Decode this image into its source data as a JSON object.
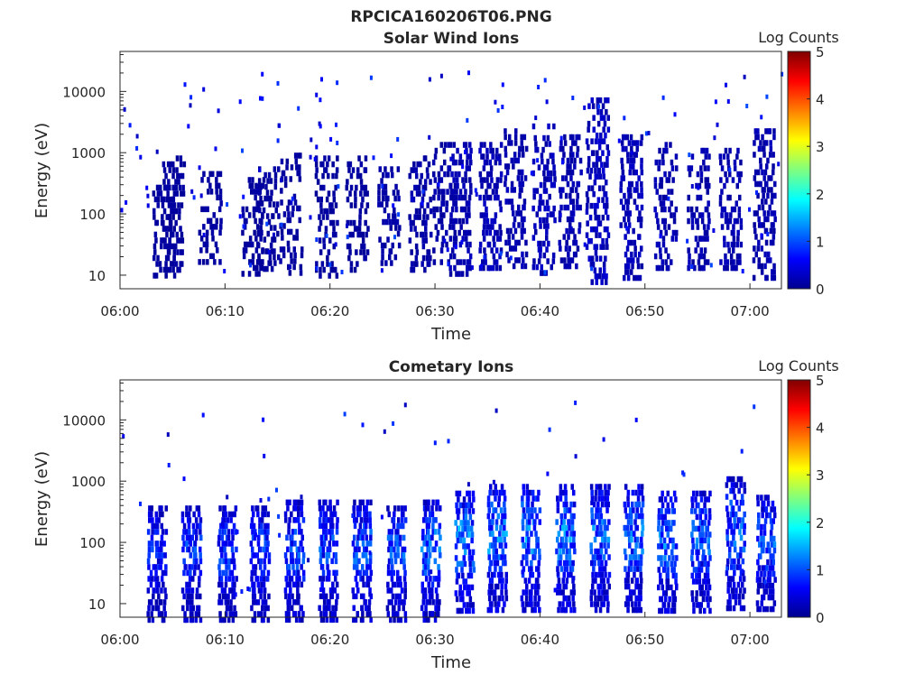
{
  "figure": {
    "title": "RPCICA160206T06.PNG"
  },
  "colorbar": {
    "title": "Log Counts",
    "ticks": [
      "0",
      "1",
      "2",
      "3",
      "4",
      "5"
    ],
    "range": [
      0,
      5
    ],
    "colormap": "jet",
    "colors": [
      "#00008f",
      "#0000ff",
      "#007fff",
      "#00ffff",
      "#7fff7f",
      "#ffff00",
      "#ff7f00",
      "#ff0000",
      "#7f0000"
    ]
  },
  "chart_data": [
    {
      "type": "heatmap",
      "title": "Solar Wind Ions",
      "xlabel": "Time",
      "ylabel": "Energy (eV)",
      "x_ticks": [
        "06:00",
        "06:10",
        "06:20",
        "06:30",
        "06:40",
        "06:50",
        "07:00"
      ],
      "x_range_minutes": [
        0,
        63
      ],
      "y_ticks": [
        "10",
        "100",
        "1000",
        "10000"
      ],
      "y_scale": "log",
      "y_range": [
        6,
        45000
      ],
      "color_scale": "Log Counts",
      "columns": [
        {
          "t": 4.1,
          "e": [
            10,
            300
          ],
          "c": 0.1,
          "s": 0.6
        },
        {
          "t": 5.0,
          "e": [
            12,
            900
          ],
          "c": 0.1,
          "s": 0.5
        },
        {
          "t": 8.5,
          "e": [
            15,
            500
          ],
          "c": 0.1,
          "s": 0.5
        },
        {
          "t": 12.6,
          "e": [
            10,
            400
          ],
          "c": 0.1,
          "s": 0.5
        },
        {
          "t": 14.0,
          "e": [
            12,
            600
          ],
          "c": 0.1,
          "s": 0.5
        },
        {
          "t": 16.2,
          "e": [
            12,
            1000
          ],
          "c": 0.1,
          "s": 0.4
        },
        {
          "t": 19.6,
          "e": [
            10,
            900
          ],
          "c": 0.1,
          "s": 0.5
        },
        {
          "t": 22.5,
          "e": [
            12,
            900
          ],
          "c": 0.1,
          "s": 0.4
        },
        {
          "t": 25.5,
          "e": [
            15,
            600
          ],
          "c": 0.15,
          "s": 0.5
        },
        {
          "t": 28.5,
          "e": [
            12,
            900
          ],
          "c": 0.15,
          "s": 0.5
        },
        {
          "t": 30.8,
          "e": [
            15,
            1500
          ],
          "c": 0.15,
          "s": 0.45
        },
        {
          "t": 32.3,
          "e": [
            10,
            1500
          ],
          "c": 0.2,
          "s": 0.55
        },
        {
          "t": 35.2,
          "e": [
            12,
            1500
          ],
          "c": 0.25,
          "s": 0.6
        },
        {
          "t": 37.6,
          "e": [
            15,
            2500
          ],
          "c": 0.2,
          "s": 0.55
        },
        {
          "t": 40.3,
          "e": [
            12,
            3000
          ],
          "c": 0.25,
          "s": 0.55
        },
        {
          "t": 42.8,
          "e": [
            15,
            2000
          ],
          "c": 0.2,
          "s": 0.55
        },
        {
          "t": 45.4,
          "e": [
            8,
            8000
          ],
          "c": 0.3,
          "s": 0.6
        },
        {
          "t": 48.6,
          "e": [
            10,
            2000
          ],
          "c": 0.25,
          "s": 0.55
        },
        {
          "t": 51.9,
          "e": [
            12,
            1500
          ],
          "c": 0.2,
          "s": 0.5
        },
        {
          "t": 55.0,
          "e": [
            12,
            1200
          ],
          "c": 0.2,
          "s": 0.5
        },
        {
          "t": 58.1,
          "e": [
            12,
            1200
          ],
          "c": 0.2,
          "s": 0.5
        },
        {
          "t": 61.3,
          "e": [
            10,
            2500
          ],
          "c": 0.2,
          "s": 0.55
        }
      ]
    },
    {
      "type": "heatmap",
      "title": "Cometary Ions",
      "xlabel": "Time",
      "ylabel": "Energy (eV)",
      "x_ticks": [
        "06:00",
        "06:10",
        "06:20",
        "06:30",
        "06:40",
        "06:50",
        "07:00"
      ],
      "x_range_minutes": [
        0,
        63
      ],
      "y_ticks": [
        "10",
        "100",
        "1000",
        "10000"
      ],
      "y_scale": "log",
      "y_range": [
        6,
        45000
      ],
      "color_scale": "Log Counts",
      "columns": [
        {
          "t": 3.5,
          "e": [
            6,
            400
          ],
          "c": 0.6,
          "s": 0.8
        },
        {
          "t": 6.8,
          "e": [
            6,
            400
          ],
          "c": 0.7,
          "s": 0.8
        },
        {
          "t": 10.2,
          "e": [
            6,
            400
          ],
          "c": 0.7,
          "s": 0.8
        },
        {
          "t": 13.3,
          "e": [
            6,
            400
          ],
          "c": 0.7,
          "s": 0.8
        },
        {
          "t": 16.6,
          "e": [
            6,
            500
          ],
          "c": 0.75,
          "s": 0.8
        },
        {
          "t": 19.8,
          "e": [
            6,
            500
          ],
          "c": 0.75,
          "s": 0.8
        },
        {
          "t": 23.0,
          "e": [
            6,
            500
          ],
          "c": 0.8,
          "s": 0.8
        },
        {
          "t": 26.3,
          "e": [
            6,
            400
          ],
          "c": 0.8,
          "s": 0.8
        },
        {
          "t": 29.6,
          "e": [
            6,
            500
          ],
          "c": 0.9,
          "s": 0.8
        },
        {
          "t": 32.8,
          "e": [
            8,
            700
          ],
          "c": 1.0,
          "s": 0.8
        },
        {
          "t": 35.9,
          "e": [
            8,
            900
          ],
          "c": 1.0,
          "s": 0.8
        },
        {
          "t": 39.1,
          "e": [
            8,
            900
          ],
          "c": 1.0,
          "s": 0.8
        },
        {
          "t": 42.4,
          "e": [
            8,
            900
          ],
          "c": 0.95,
          "s": 0.8
        },
        {
          "t": 45.7,
          "e": [
            8,
            900
          ],
          "c": 0.9,
          "s": 0.8
        },
        {
          "t": 48.9,
          "e": [
            8,
            900
          ],
          "c": 0.9,
          "s": 0.8
        },
        {
          "t": 52.1,
          "e": [
            8,
            700
          ],
          "c": 0.9,
          "s": 0.8
        },
        {
          "t": 55.3,
          "e": [
            8,
            700
          ],
          "c": 0.85,
          "s": 0.8
        },
        {
          "t": 58.6,
          "e": [
            8,
            1200
          ],
          "c": 0.85,
          "s": 0.8
        },
        {
          "t": 61.5,
          "e": [
            8,
            600
          ],
          "c": 0.8,
          "s": 0.8
        }
      ]
    }
  ]
}
